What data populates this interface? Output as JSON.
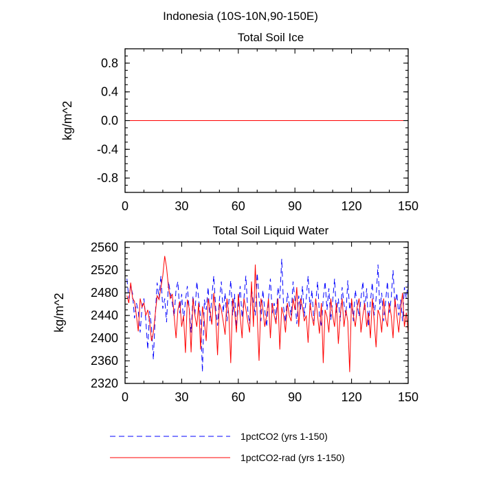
{
  "figure_title": "Indonesia (10S-10N,90-150E)",
  "legend": [
    {
      "label": "1pctCO2 (yrs 1-150)",
      "color": "#0000ff",
      "style": "dashed"
    },
    {
      "label": "1pctCO2-rad (yrs 1-150)",
      "color": "#ff0000",
      "style": "solid"
    }
  ],
  "chart_data": [
    {
      "type": "line",
      "title": "Total Soil Ice",
      "xlabel": "",
      "ylabel": "kg/m^2",
      "xlim": [
        0,
        150
      ],
      "ylim": [
        -1,
        1
      ],
      "xticks": [
        0,
        30,
        60,
        90,
        120,
        150
      ],
      "xtick_labels": [
        "0",
        "30",
        "60",
        "90",
        "120",
        "150"
      ],
      "yticks": [
        -0.8,
        -0.4,
        0.0,
        0.4,
        0.8
      ],
      "ytick_labels": [
        "-0.8",
        "-0.4",
        "0.0",
        "0.4",
        "0.8"
      ],
      "x": [
        1,
        150
      ],
      "series": [
        {
          "name": "1pctCO2 (yrs 1-150)",
          "color": "#0000ff",
          "dash": true,
          "values": [
            0,
            0
          ]
        },
        {
          "name": "1pctCO2-rad (yrs 1-150)",
          "color": "#ff0000",
          "dash": false,
          "values": [
            0,
            0
          ]
        }
      ]
    },
    {
      "type": "line",
      "title": "Total Soil Liquid Water",
      "xlabel": "",
      "ylabel": "kg/m^2",
      "xlim": [
        0,
        150
      ],
      "ylim": [
        2320,
        2570
      ],
      "xticks": [
        0,
        30,
        60,
        90,
        120,
        150
      ],
      "xtick_labels": [
        "0",
        "30",
        "60",
        "90",
        "120",
        "150"
      ],
      "yticks": [
        2320,
        2360,
        2400,
        2440,
        2480,
        2520,
        2560
      ],
      "ytick_labels": [
        "2320",
        "2360",
        "2400",
        "2440",
        "2480",
        "2520",
        "2560"
      ],
      "x_start": 1,
      "x_step": 1,
      "series": [
        {
          "name": "1pctCO2 (yrs 1-150)",
          "color": "#0000ff",
          "dash": true,
          "values": [
            2505,
            2470,
            2492,
            2478,
            2435,
            2462,
            2448,
            2410,
            2455,
            2470,
            2432,
            2380,
            2448,
            2420,
            2362,
            2440,
            2498,
            2470,
            2510,
            2452,
            2470,
            2428,
            2500,
            2480,
            2462,
            2438,
            2486,
            2500,
            2444,
            2478,
            2430,
            2466,
            2492,
            2450,
            2410,
            2475,
            2440,
            2500,
            2470,
            2436,
            2340,
            2468,
            2450,
            2490,
            2430,
            2474,
            2510,
            2455,
            2422,
            2468,
            2500,
            2445,
            2480,
            2430,
            2465,
            2502,
            2440,
            2478,
            2420,
            2455,
            2492,
            2436,
            2470,
            2510,
            2450,
            2425,
            2488,
            2462,
            2440,
            2515,
            2470,
            2430,
            2485,
            2450,
            2420,
            2470,
            2505,
            2444,
            2462,
            2432,
            2490,
            2470,
            2540,
            2455,
            2428,
            2480,
            2460,
            2440,
            2500,
            2468,
            2425,
            2475,
            2450,
            2492,
            2438,
            2470,
            2510,
            2450,
            2485,
            2430,
            2462,
            2500,
            2440,
            2420,
            2470,
            2500,
            2450,
            2488,
            2432,
            2465,
            2505,
            2445,
            2470,
            2430,
            2490,
            2460,
            2440,
            2502,
            2450,
            2468,
            2430,
            2485,
            2460,
            2438,
            2470,
            2500,
            2450,
            2488,
            2420,
            2465,
            2498,
            2440,
            2470,
            2530,
            2450,
            2480,
            2430,
            2462,
            2500,
            2445,
            2470,
            2520,
            2455,
            2480,
            2440,
            2468,
            2430,
            2490,
            2470,
            2500
          ]
        },
        {
          "name": "1pctCO2-rad (yrs 1-150)",
          "color": "#ff0000",
          "dash": false,
          "values": [
            2475,
            2462,
            2498,
            2470,
            2465,
            2440,
            2412,
            2470,
            2455,
            2462,
            2440,
            2450,
            2430,
            2395,
            2410,
            2442,
            2475,
            2468,
            2490,
            2510,
            2545,
            2525,
            2490,
            2470,
            2478,
            2440,
            2400,
            2450,
            2465,
            2420,
            2440,
            2374,
            2468,
            2452,
            2375,
            2470,
            2440,
            2420,
            2462,
            2380,
            2456,
            2430,
            2395,
            2470,
            2450,
            2424,
            2480,
            2440,
            2370,
            2462,
            2450,
            2430,
            2406,
            2470,
            2440,
            2356,
            2470,
            2450,
            2410,
            2478,
            2440,
            2400,
            2470,
            2452,
            2430,
            2410,
            2500,
            2420,
            2530,
            2440,
            2360,
            2470,
            2452,
            2420,
            2440,
            2470,
            2400,
            2462,
            2440,
            2425,
            2470,
            2380,
            2455,
            2440,
            2410,
            2462,
            2440,
            2430,
            2470,
            2450,
            2490,
            2420,
            2470,
            2455,
            2430,
            2440,
            2392,
            2462,
            2438,
            2422,
            2470,
            2440,
            2408,
            2462,
            2356,
            2450,
            2438,
            2410,
            2470,
            2440,
            2420,
            2462,
            2390,
            2440,
            2470,
            2420,
            2450,
            2430,
            2340,
            2470,
            2440,
            2420,
            2455,
            2470,
            2410,
            2440,
            2462,
            2420,
            2445,
            2400,
            2470,
            2430,
            2384,
            2450,
            2440,
            2410,
            2470,
            2436,
            2420,
            2462,
            2440,
            2400,
            2470,
            2440,
            2410,
            2450,
            2480,
            2420,
            2445,
            2410
          ]
        }
      ]
    }
  ]
}
